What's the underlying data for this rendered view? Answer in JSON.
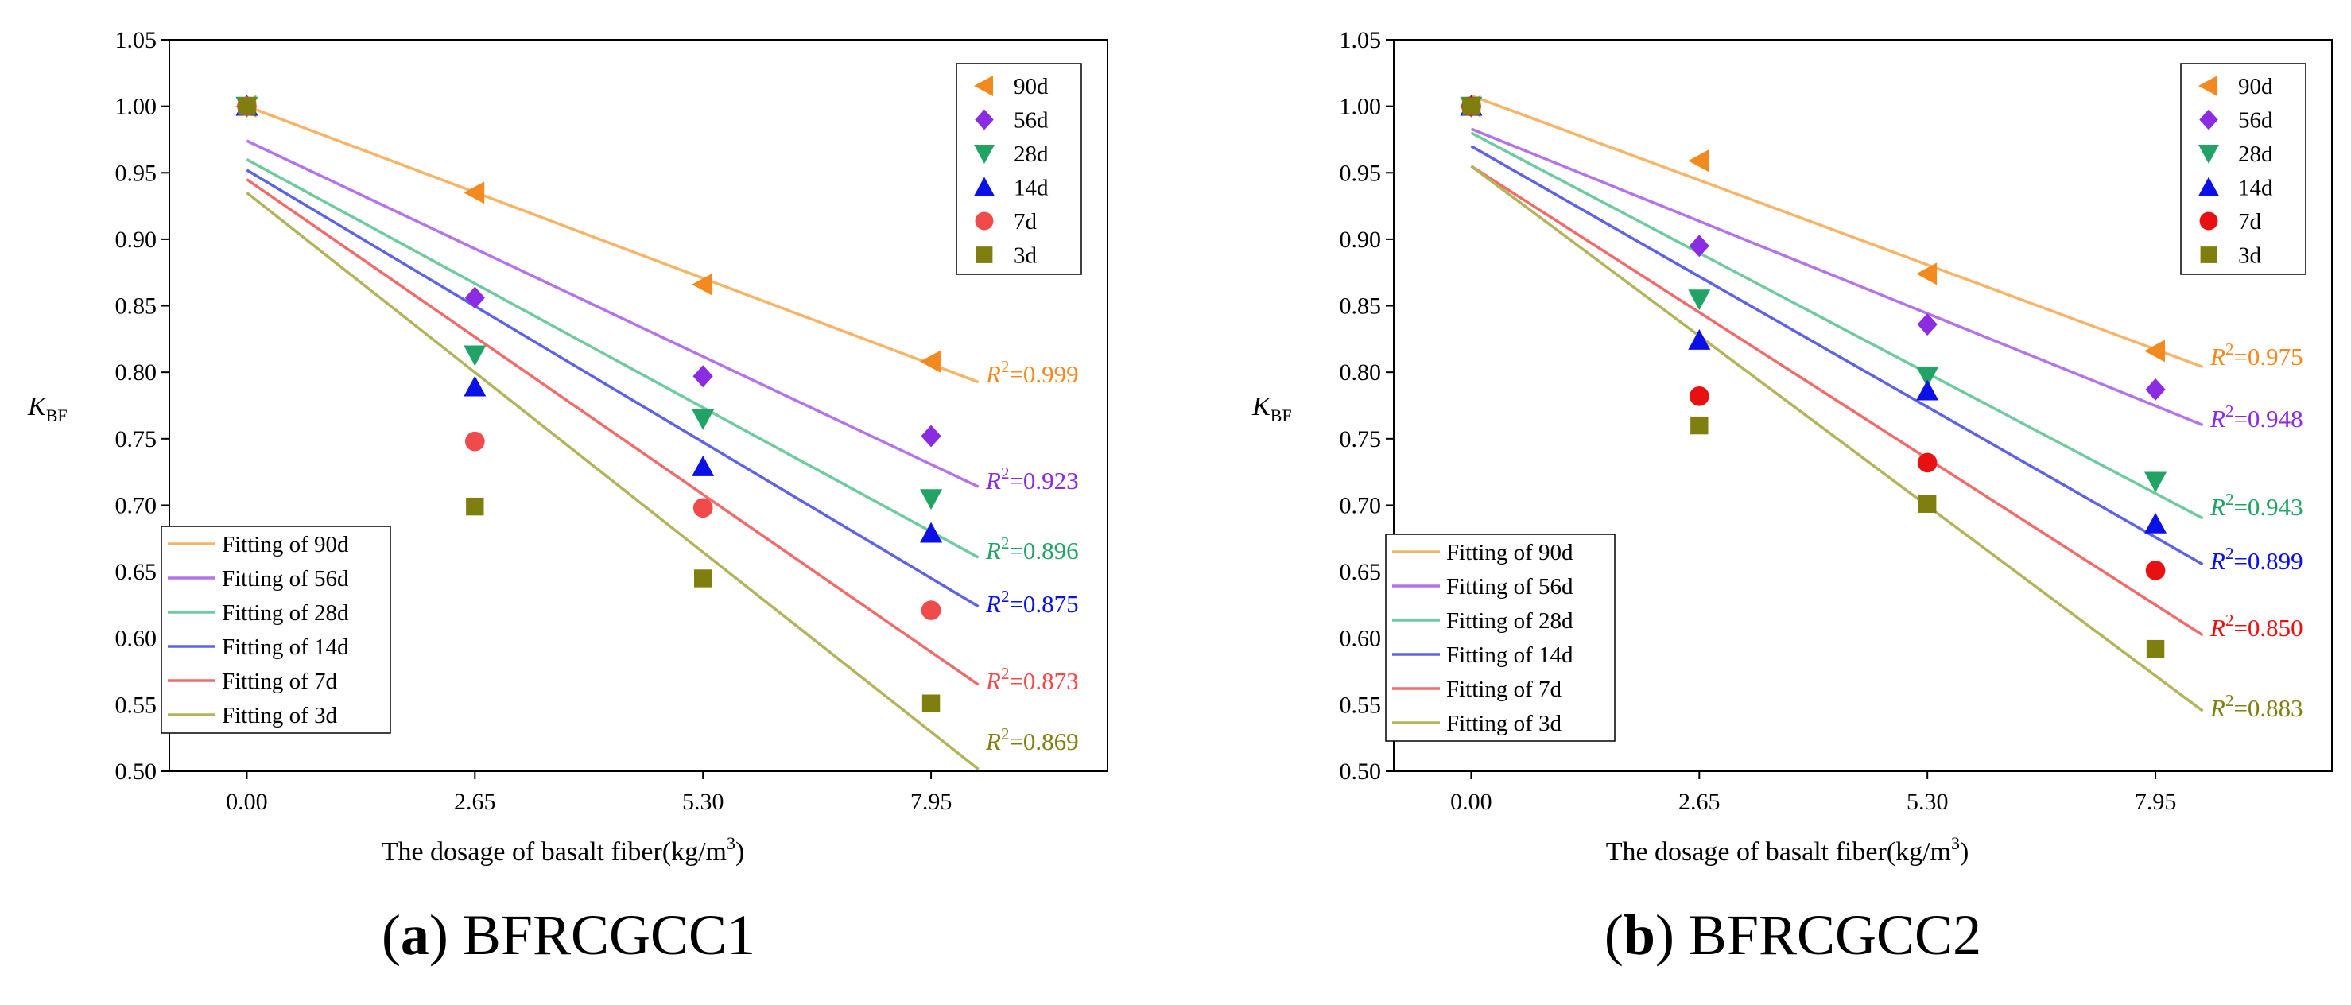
{
  "chart_data": [
    {
      "type": "scatter",
      "caption_label": "a",
      "caption_text": "BFRCGCC1",
      "ylabel_main": "K",
      "ylabel_sub": "BF",
      "xlabel_main": "The dosage of basalt fiber(kg/m",
      "xlabel_sup": "3",
      "xlabel_end": ")",
      "x_ticks": [
        "0.00",
        "2.65",
        "5.30",
        "7.95"
      ],
      "x_values": [
        0,
        2.65,
        5.3,
        7.95
      ],
      "xlim": [
        -0.9,
        10.0
      ],
      "fit_x_range": [
        0,
        8.5
      ],
      "y_ticks": [
        "0.50",
        "0.55",
        "0.60",
        "0.65",
        "0.70",
        "0.75",
        "0.80",
        "0.85",
        "0.90",
        "0.95",
        "1.00",
        "1.05"
      ],
      "ylim": [
        0.5,
        1.05
      ],
      "series": [
        {
          "name": "90d",
          "marker": "triangle-left",
          "color": "#F28A1F",
          "fit_color": "#F7B467",
          "values": [
            1.0,
            0.935,
            0.866,
            0.808
          ],
          "fit": [
            1.0,
            -0.0244
          ],
          "fit_name": "Fitting of 90d",
          "r2_prefix": "R",
          "r2_sup": "2",
          "r2_value": "=0.999"
        },
        {
          "name": "56d",
          "marker": "diamond",
          "color": "#8B2BE2",
          "fit_color": "#B473EA",
          "values": [
            1.0,
            0.856,
            0.797,
            0.752
          ],
          "fit": [
            0.974,
            -0.0306
          ],
          "fit_name": "Fitting of 56d",
          "r2_prefix": "R",
          "r2_sup": "2",
          "r2_value": "=0.923"
        },
        {
          "name": "28d",
          "marker": "triangle-down",
          "color": "#21A366",
          "fit_color": "#6FCB9F",
          "values": [
            1.0,
            0.813,
            0.765,
            0.705
          ],
          "fit": [
            0.96,
            -0.0352
          ],
          "fit_name": "Fitting of 28d",
          "r2_prefix": "R",
          "r2_sup": "2",
          "r2_value": "=0.896"
        },
        {
          "name": "14d",
          "marker": "triangle-up",
          "color": "#0A10E6",
          "fit_color": "#5D63E8",
          "values": [
            1.0,
            0.789,
            0.729,
            0.679
          ],
          "fit": [
            0.952,
            -0.0386
          ],
          "fit_name": "Fitting of 14d",
          "r2_prefix": "R",
          "r2_sup": "2",
          "r2_value": "=0.875"
        },
        {
          "name": "7d",
          "marker": "circle",
          "color": "#F04A4A",
          "fit_color": "#F26B6B",
          "values": [
            1.0,
            0.748,
            0.698,
            0.621
          ],
          "fit": [
            0.945,
            -0.0447
          ],
          "fit_name": "Fitting of 7d",
          "r2_prefix": "R",
          "r2_sup": "2",
          "r2_value": "=0.873"
        },
        {
          "name": "3d",
          "marker": "square",
          "color": "#7F7F10",
          "fit_color": "#B3B35A",
          "values": [
            1.0,
            0.699,
            0.645,
            0.551
          ],
          "fit": [
            0.935,
            -0.051
          ],
          "fit_name": "Fitting of 3d",
          "r2_prefix": "R",
          "r2_sup": "2",
          "r2_value": "=0.869"
        }
      ]
    },
    {
      "type": "scatter",
      "caption_label": "b",
      "caption_text": "BFRCGCC2",
      "ylabel_main": "K",
      "ylabel_sub": "BF",
      "xlabel_main": "The dosage of basalt fiber(kg/m",
      "xlabel_sup": "3",
      "xlabel_end": ")",
      "x_ticks": [
        "0.00",
        "2.65",
        "5.30",
        "7.95"
      ],
      "x_values": [
        0,
        2.65,
        5.3,
        7.95
      ],
      "xlim": [
        -0.9,
        10.0
      ],
      "fit_x_range": [
        0,
        8.5
      ],
      "y_ticks": [
        "0.50",
        "0.55",
        "0.60",
        "0.65",
        "0.70",
        "0.75",
        "0.80",
        "0.85",
        "0.90",
        "0.95",
        "1.00",
        "1.05"
      ],
      "ylim": [
        0.5,
        1.05
      ],
      "series": [
        {
          "name": "90d",
          "marker": "triangle-left",
          "color": "#F28A1F",
          "fit_color": "#F7B467",
          "values": [
            1.0,
            0.959,
            0.874,
            0.816
          ],
          "fit": [
            1.008,
            -0.024
          ],
          "fit_name": "Fitting of 90d",
          "r2_prefix": "R",
          "r2_sup": "2",
          "r2_value": "=0.975"
        },
        {
          "name": "56d",
          "marker": "diamond",
          "color": "#8B2BE2",
          "fit_color": "#B473EA",
          "values": [
            1.0,
            0.895,
            0.836,
            0.787
          ],
          "fit": [
            0.983,
            -0.0262
          ],
          "fit_name": "Fitting of 56d",
          "r2_prefix": "R",
          "r2_sup": "2",
          "r2_value": "=0.948"
        },
        {
          "name": "28d",
          "marker": "triangle-down",
          "color": "#21A366",
          "fit_color": "#6FCB9F",
          "values": [
            1.0,
            0.855,
            0.797,
            0.718
          ],
          "fit": [
            0.98,
            -0.0341
          ],
          "fit_name": "Fitting of 28d",
          "r2_prefix": "R",
          "r2_sup": "2",
          "r2_value": "=0.943"
        },
        {
          "name": "14d",
          "marker": "triangle-up",
          "color": "#0A10E6",
          "fit_color": "#5D63E8",
          "values": [
            1.0,
            0.824,
            0.786,
            0.686
          ],
          "fit": [
            0.97,
            -0.037
          ],
          "fit_name": "Fitting of 14d",
          "r2_prefix": "R",
          "r2_sup": "2",
          "r2_value": "=0.899"
        },
        {
          "name": "7d",
          "marker": "circle",
          "color": "#E81010",
          "fit_color": "#F26B6B",
          "values": [
            1.0,
            0.782,
            0.732,
            0.651
          ],
          "fit": [
            0.955,
            -0.0415
          ],
          "fit_name": "Fitting of 7d",
          "r2_prefix": "R",
          "r2_sup": "2",
          "r2_value": "=0.850"
        },
        {
          "name": "3d",
          "marker": "square",
          "color": "#7F7F10",
          "fit_color": "#B3B35A",
          "values": [
            1.0,
            0.76,
            0.701,
            0.592
          ],
          "fit": [
            0.955,
            -0.0482
          ],
          "fit_name": "Fitting of 3d",
          "r2_prefix": "R",
          "r2_sup": "2",
          "r2_value": "=0.883"
        }
      ]
    }
  ]
}
